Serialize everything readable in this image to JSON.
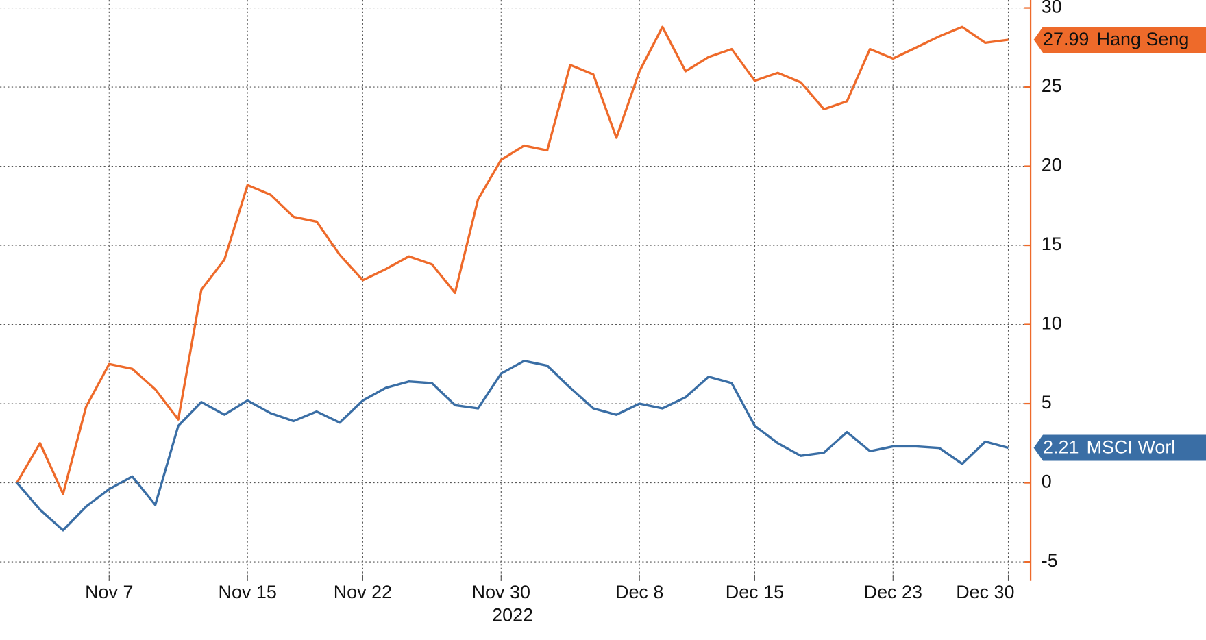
{
  "chart_data": {
    "type": "line",
    "categories": [
      null,
      null,
      null,
      null,
      "Nov 7",
      null,
      null,
      null,
      null,
      null,
      "Nov 15",
      null,
      null,
      null,
      null,
      "Nov 22",
      null,
      null,
      null,
      null,
      null,
      "Nov 30",
      null,
      null,
      null,
      null,
      null,
      "Dec 8",
      null,
      null,
      null,
      null,
      "Dec 15",
      null,
      null,
      null,
      null,
      null,
      "Dec 23",
      null,
      null,
      null,
      null,
      "Dec 30"
    ],
    "x_sublabel": {
      "category": 21,
      "text": "2022"
    },
    "series": [
      {
        "name": "Hang Seng",
        "color": "#ee6a2a",
        "tag_text_color": "#111111",
        "values": [
          0,
          2.5,
          -0.7,
          4.8,
          7.5,
          7.2,
          5.9,
          4.0,
          12.2,
          14.1,
          18.8,
          18.2,
          16.8,
          16.5,
          14.4,
          12.8,
          13.5,
          14.3,
          13.8,
          12.0,
          17.9,
          20.4,
          21.3,
          21.0,
          26.4,
          25.8,
          21.8,
          26.0,
          28.8,
          26.0,
          26.9,
          27.4,
          25.4,
          25.9,
          25.3,
          23.6,
          24.1,
          27.4,
          26.8,
          27.5,
          28.2,
          28.8,
          27.8,
          27.99
        ]
      },
      {
        "name": "MSCI Worl",
        "color": "#3a6ea5",
        "tag_text_color": "#ffffff",
        "values": [
          0,
          -1.7,
          -3.0,
          -1.5,
          -0.4,
          0.4,
          -1.4,
          3.6,
          5.1,
          4.3,
          5.2,
          4.4,
          3.9,
          4.5,
          3.8,
          5.2,
          6.0,
          6.4,
          6.3,
          4.9,
          4.7,
          6.9,
          7.7,
          7.4,
          6.0,
          4.7,
          4.3,
          5.0,
          4.7,
          5.4,
          6.7,
          6.3,
          3.6,
          2.5,
          1.7,
          1.9,
          3.2,
          2.0,
          2.3,
          2.3,
          2.2,
          1.2,
          2.6,
          2.21
        ]
      }
    ],
    "ylim": [
      -6.2,
      30.5
    ],
    "yticks": [
      -5,
      0,
      5,
      10,
      15,
      20,
      25,
      30
    ],
    "y_axis_side": "right",
    "axis_color": "#ee6a2a",
    "grid": true
  }
}
